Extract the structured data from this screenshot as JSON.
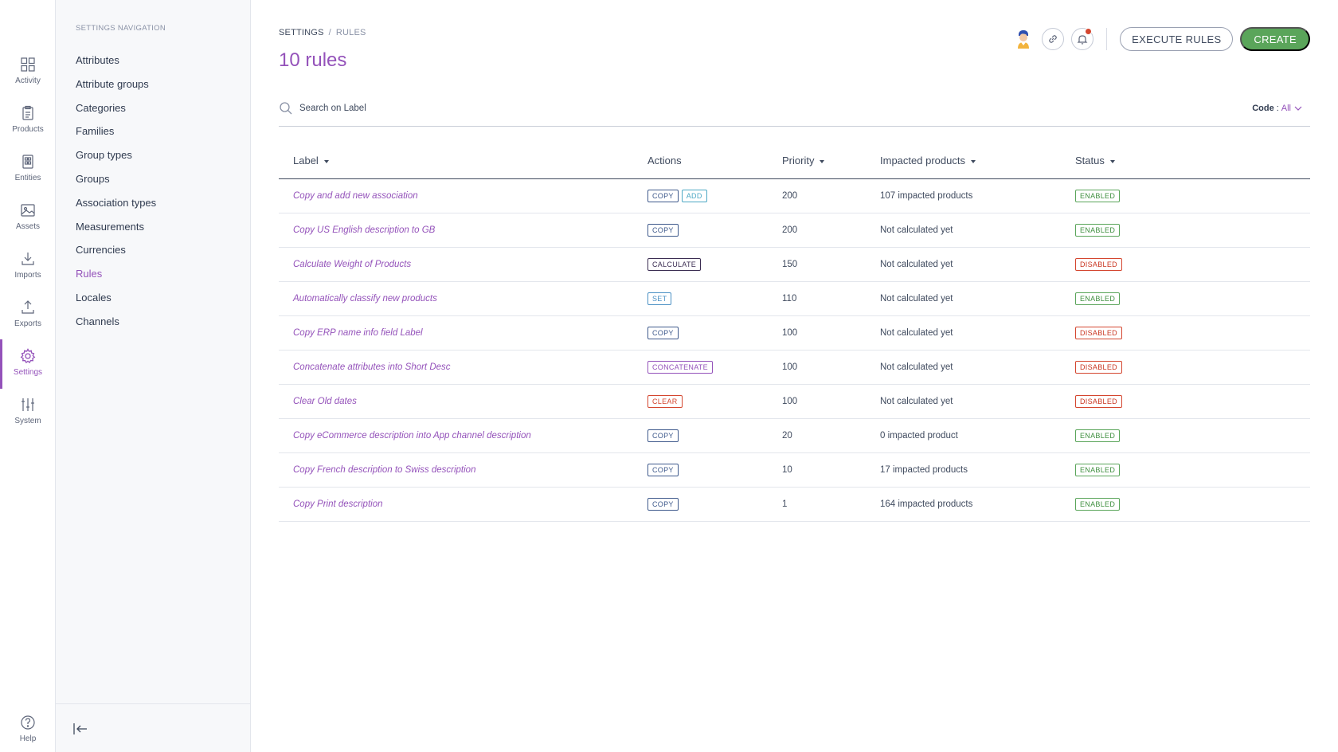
{
  "rail": {
    "items": [
      {
        "label": "Activity",
        "icon": "grid-icon"
      },
      {
        "label": "Products",
        "icon": "clipboard-icon"
      },
      {
        "label": "Entities",
        "icon": "entities-icon"
      },
      {
        "label": "Assets",
        "icon": "image-icon"
      },
      {
        "label": "Imports",
        "icon": "download-icon"
      },
      {
        "label": "Exports",
        "icon": "upload-icon"
      },
      {
        "label": "Settings",
        "icon": "gear-icon",
        "active": true
      },
      {
        "label": "System",
        "icon": "sliders-icon"
      }
    ],
    "help_label": "Help"
  },
  "subnav": {
    "title": "SETTINGS NAVIGATION",
    "items": [
      {
        "label": "Attributes"
      },
      {
        "label": "Attribute groups"
      },
      {
        "label": "Categories"
      },
      {
        "label": "Families"
      },
      {
        "label": "Group types"
      },
      {
        "label": "Groups"
      },
      {
        "label": "Association types"
      },
      {
        "label": "Measurements"
      },
      {
        "label": "Currencies"
      },
      {
        "label": "Rules",
        "active": true
      },
      {
        "label": "Locales"
      },
      {
        "label": "Channels"
      }
    ]
  },
  "breadcrumb": {
    "root": "SETTINGS",
    "separator": "/",
    "current": "RULES"
  },
  "page_title": "10 rules",
  "toolbar": {
    "execute_label": "EXECUTE RULES",
    "create_label": "CREATE"
  },
  "search": {
    "placeholder": "Search on Label",
    "value": ""
  },
  "code_filter": {
    "label": "Code",
    "value": "All"
  },
  "table": {
    "columns": [
      "Label",
      "Actions",
      "Priority",
      "Impacted products",
      "Status"
    ],
    "rows": [
      {
        "label": "Copy and add new association",
        "actions": [
          "COPY",
          "ADD"
        ],
        "priority": "200",
        "impacted": "107 impacted products",
        "status": "ENABLED"
      },
      {
        "label": "Copy US English description to GB",
        "actions": [
          "COPY"
        ],
        "priority": "200",
        "impacted": "Not calculated yet",
        "status": "ENABLED"
      },
      {
        "label": "Calculate Weight of Products",
        "actions": [
          "CALCULATE"
        ],
        "priority": "150",
        "impacted": "Not calculated yet",
        "status": "DISABLED"
      },
      {
        "label": "Automatically classify new products",
        "actions": [
          "SET"
        ],
        "priority": "110",
        "impacted": "Not calculated yet",
        "status": "ENABLED"
      },
      {
        "label": "Copy ERP name info field Label",
        "actions": [
          "COPY"
        ],
        "priority": "100",
        "impacted": "Not calculated yet",
        "status": "DISABLED"
      },
      {
        "label": "Concatenate attributes into Short Desc",
        "actions": [
          "CONCATENATE"
        ],
        "priority": "100",
        "impacted": "Not calculated yet",
        "status": "DISABLED"
      },
      {
        "label": "Clear Old dates",
        "actions": [
          "CLEAR"
        ],
        "priority": "100",
        "impacted": "Not calculated yet",
        "status": "DISABLED"
      },
      {
        "label": "Copy eCommerce description into App channel description",
        "actions": [
          "COPY"
        ],
        "priority": "20",
        "impacted": "0 impacted product",
        "status": "ENABLED"
      },
      {
        "label": "Copy French description to Swiss description",
        "actions": [
          "COPY"
        ],
        "priority": "10",
        "impacted": "17 impacted products",
        "status": "ENABLED"
      },
      {
        "label": "Copy Print description",
        "actions": [
          "COPY"
        ],
        "priority": "1",
        "impacted": "164 impacted products",
        "status": "ENABLED"
      }
    ]
  },
  "colors": {
    "accent": "#9452ba",
    "primary_button": "#5aa55a",
    "enabled": "#5aa55a",
    "disabled": "#d4462f",
    "text": "#3f4a5e"
  }
}
